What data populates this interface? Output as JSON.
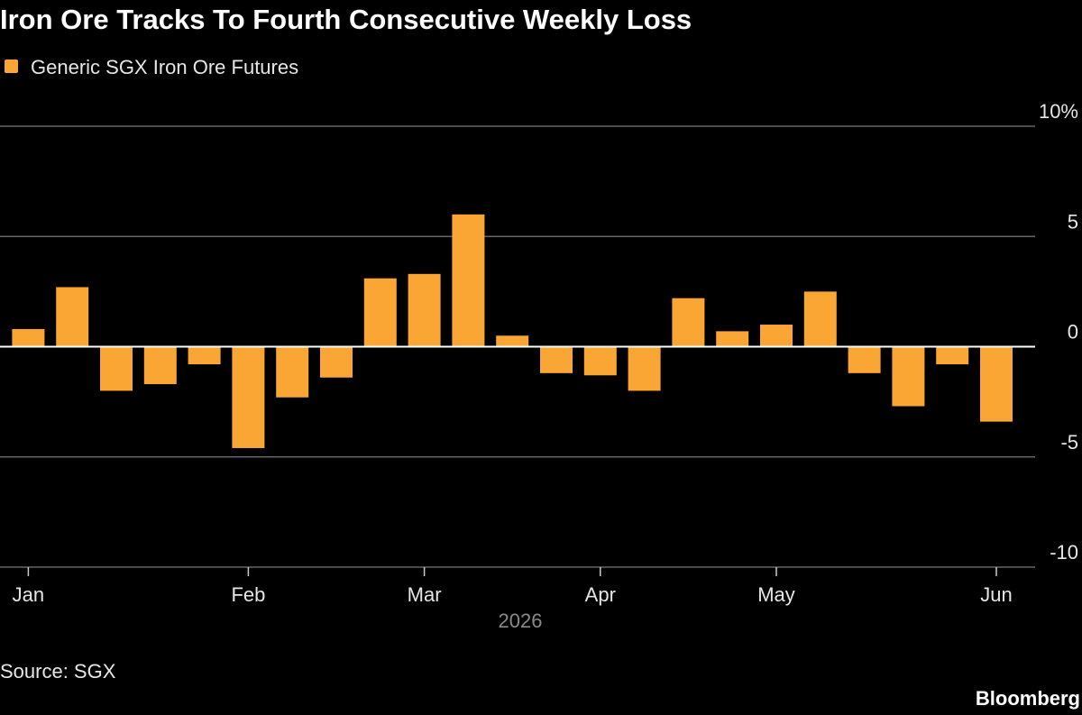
{
  "chart_data": {
    "type": "bar",
    "title": "Iron Ore Tracks To Fourth Consecutive Weekly Loss",
    "series": [
      {
        "name": "Generic SGX Iron Ore Futures",
        "color": "#faa634",
        "values": [
          0.8,
          2.7,
          -2.0,
          -1.7,
          -0.8,
          -4.6,
          -2.3,
          -1.4,
          3.1,
          3.3,
          6.0,
          0.5,
          -1.2,
          -1.3,
          -2.0,
          2.2,
          0.7,
          1.0,
          2.5,
          -1.2,
          -2.7,
          -0.8,
          -3.4
        ]
      }
    ],
    "categories": [
      "Jan",
      null,
      null,
      null,
      null,
      "Feb",
      null,
      null,
      null,
      "Mar",
      null,
      null,
      null,
      "Apr",
      null,
      null,
      null,
      "May",
      null,
      null,
      null,
      null,
      "Jun"
    ],
    "xlabel": "2026",
    "ylim": [
      -10,
      10
    ],
    "yticks": [
      -10,
      -5,
      0,
      5,
      {
        "value": 10,
        "label": "10%"
      }
    ],
    "grid": true,
    "source": "Source: SGX",
    "brand": "Bloomberg"
  }
}
